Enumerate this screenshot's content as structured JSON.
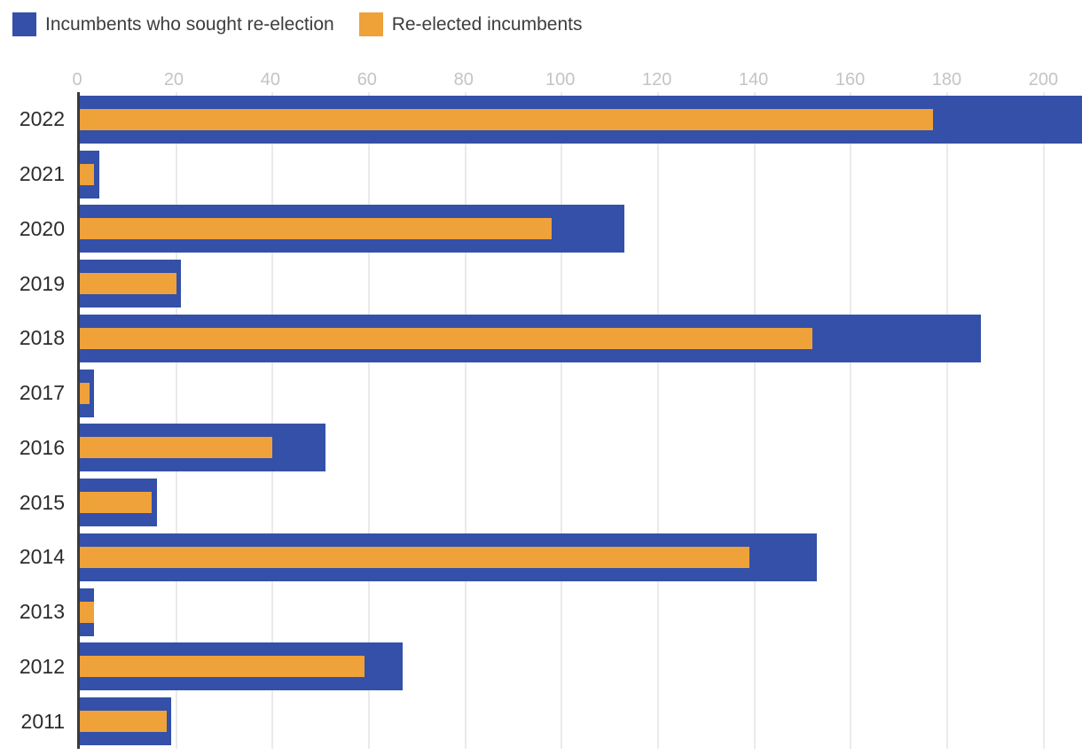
{
  "legend": {
    "items": [
      {
        "label": "Incumbents who sought re-election",
        "color": "#3450a8"
      },
      {
        "label": "Re-elected incumbents",
        "color": "#efa13a"
      }
    ]
  },
  "colors": {
    "series_blue": "#3450a8",
    "series_orange": "#efa13a",
    "gridline": "#eaeaea",
    "axis_line": "#3a3a3a",
    "tick_label": "#c4c4c4",
    "year_label": "#2c2c2c"
  },
  "chart_data": {
    "type": "bar",
    "orientation": "horizontal",
    "title": "",
    "xlabel": "",
    "ylabel": "",
    "categories": [
      "2022",
      "2021",
      "2020",
      "2019",
      "2018",
      "2017",
      "2016",
      "2015",
      "2014",
      "2013",
      "2012",
      "2011"
    ],
    "series": [
      {
        "name": "Incumbents who sought re-election",
        "color": "#3450a8",
        "values": [
          208,
          4,
          113,
          21,
          187,
          3,
          51,
          16,
          153,
          3,
          67,
          19
        ]
      },
      {
        "name": "Re-elected incumbents",
        "color": "#efa13a",
        "values": [
          177,
          3,
          98,
          20,
          152,
          2,
          40,
          15,
          139,
          3,
          59,
          18
        ]
      }
    ],
    "x_ticks": [
      0,
      20,
      40,
      60,
      80,
      100,
      120,
      140,
      160,
      180,
      200
    ],
    "xlim": [
      0,
      208
    ],
    "grid": true,
    "legend_position": "top-left"
  }
}
